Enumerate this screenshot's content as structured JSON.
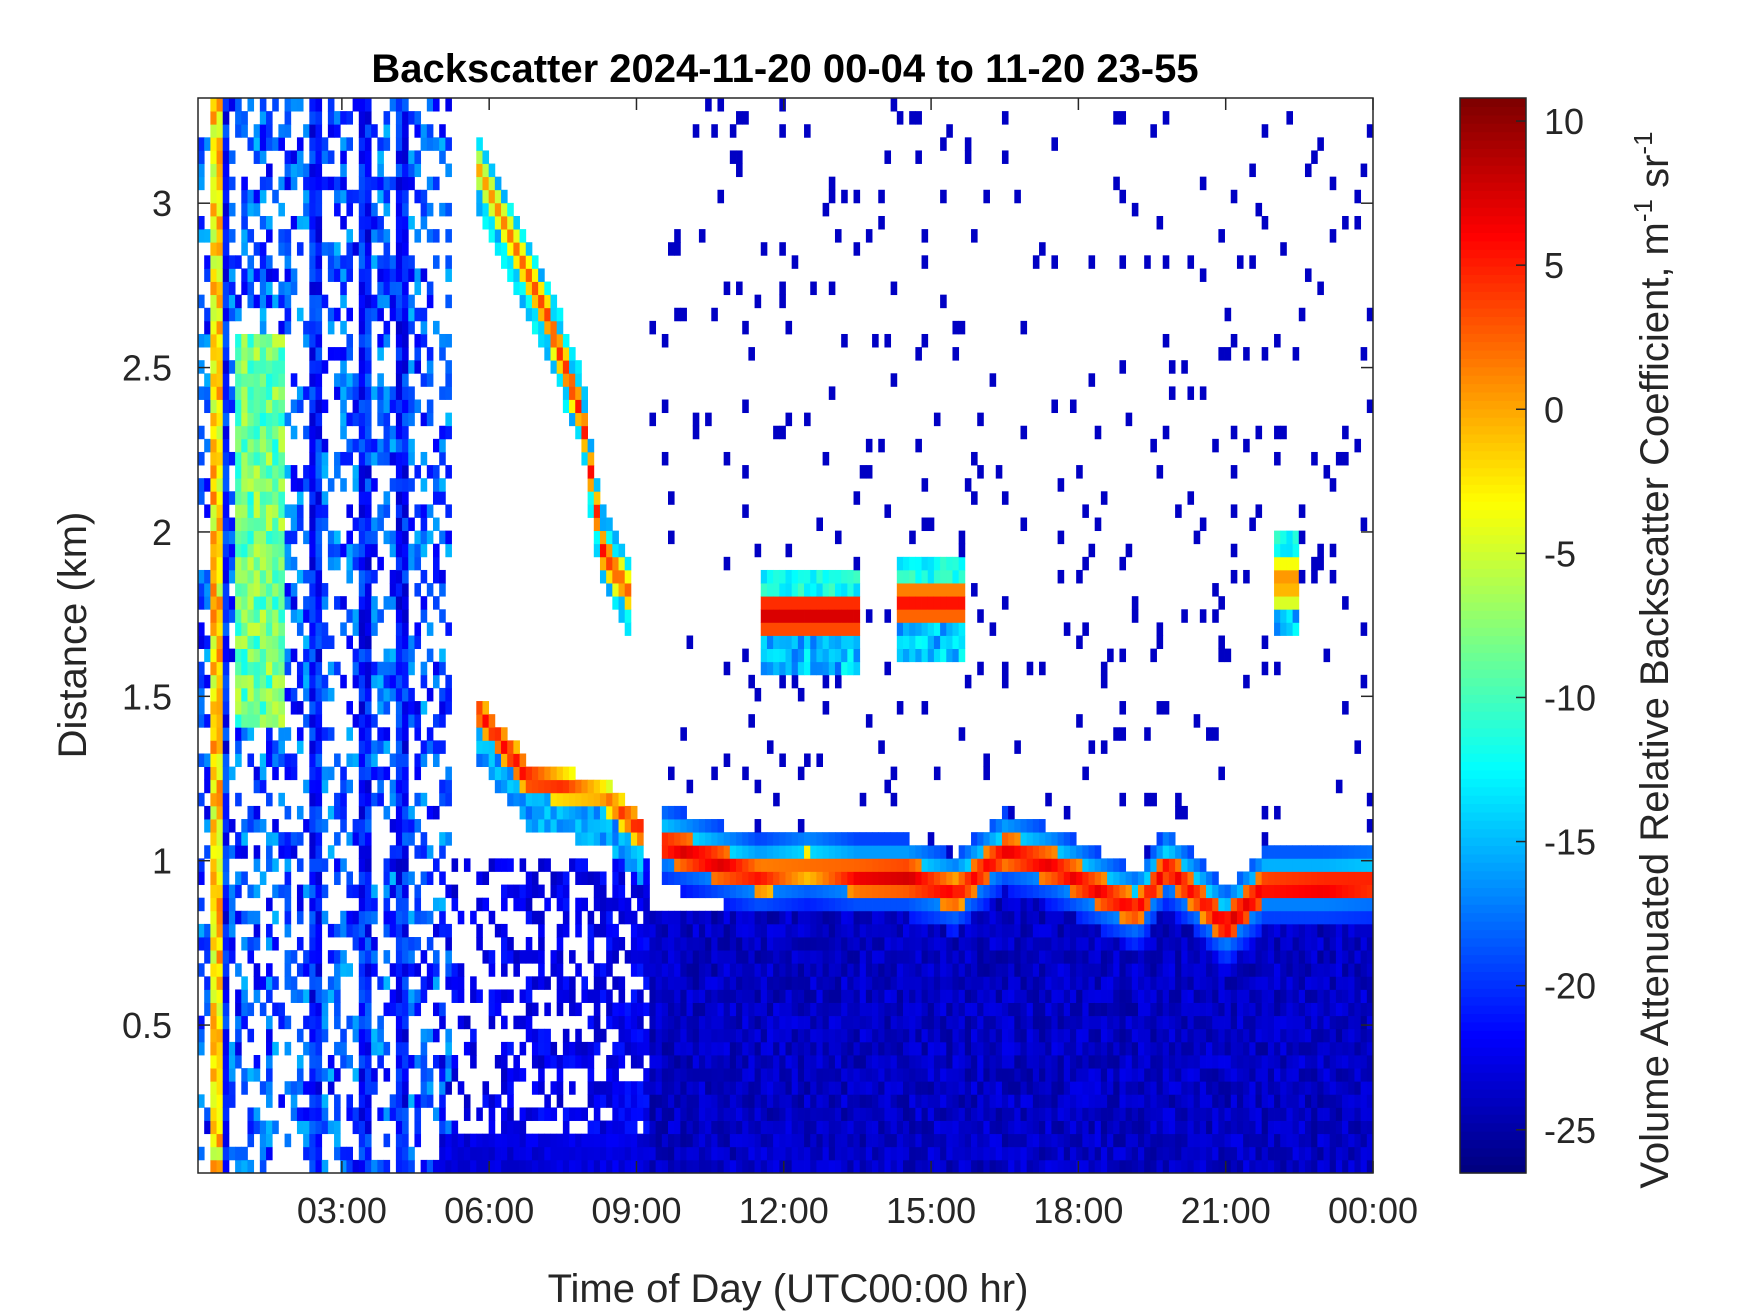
{
  "chart_data": {
    "type": "heatmap",
    "title": "Backscatter 2024-11-20 00-04 to 11-20 23-55",
    "xlabel": "Time of Day (UTC00:00 hr)",
    "ylabel": "Distance (km)",
    "x_range_hours": [
      0.07,
      24.0
    ],
    "y_range_km": [
      0.05,
      3.32
    ],
    "x_ticks": [
      {
        "value": 3,
        "label": "03:00"
      },
      {
        "value": 6,
        "label": "06:00"
      },
      {
        "value": 9,
        "label": "09:00"
      },
      {
        "value": 12,
        "label": "12:00"
      },
      {
        "value": 15,
        "label": "15:00"
      },
      {
        "value": 18,
        "label": "18:00"
      },
      {
        "value": 21,
        "label": "21:00"
      },
      {
        "value": 24,
        "label": "00:00"
      }
    ],
    "y_ticks": [
      {
        "value": 0.5,
        "label": "0.5"
      },
      {
        "value": 1.0,
        "label": "1"
      },
      {
        "value": 1.5,
        "label": "1.5"
      },
      {
        "value": 2.0,
        "label": "2"
      },
      {
        "value": 2.5,
        "label": "2.5"
      },
      {
        "value": 3.0,
        "label": "3"
      }
    ],
    "colorbar": {
      "label": "Volume Attenuated Relative Backscatter Coefficient, m",
      "label_unit_m_exp": "-1",
      "label_unit_sr": " sr",
      "label_unit_sr_exp": "-1",
      "colormap": "jet",
      "range": [
        -26.5,
        10.8
      ],
      "ticks": [
        {
          "value": 10,
          "label": "10"
        },
        {
          "value": 5,
          "label": "5"
        },
        {
          "value": 0,
          "label": "0"
        },
        {
          "value": -5,
          "label": "-5"
        },
        {
          "value": -10,
          "label": "-10"
        },
        {
          "value": -15,
          "label": "-15"
        },
        {
          "value": -20,
          "label": "-20"
        },
        {
          "value": -25,
          "label": "-25"
        }
      ]
    },
    "features": {
      "boundary_layer_fill_value": -24,
      "cloud_layer": [
        {
          "t": 9.5,
          "z": 1.05,
          "v": 7
        },
        {
          "t": 10.5,
          "z": 1.0,
          "v": 8
        },
        {
          "t": 11.5,
          "z": 0.95,
          "v": 6
        },
        {
          "t": 12.5,
          "z": 0.98,
          "v": 3
        },
        {
          "t": 13.5,
          "z": 0.95,
          "v": 7
        },
        {
          "t": 14.5,
          "z": 0.95,
          "v": 8
        },
        {
          "t": 15.5,
          "z": 0.9,
          "v": 6
        },
        {
          "t": 16.5,
          "z": 1.03,
          "v": 7
        },
        {
          "t": 17.5,
          "z": 0.98,
          "v": 7
        },
        {
          "t": 18.5,
          "z": 0.9,
          "v": 7
        },
        {
          "t": 19.2,
          "z": 0.85,
          "v": 6
        },
        {
          "t": 19.8,
          "z": 0.98,
          "v": 7
        },
        {
          "t": 20.5,
          "z": 0.88,
          "v": 6
        },
        {
          "t": 21.0,
          "z": 0.8,
          "v": 8
        },
        {
          "t": 21.8,
          "z": 0.92,
          "v": 7
        },
        {
          "t": 23.0,
          "z": 0.92,
          "v": 8
        },
        {
          "t": 24.0,
          "z": 0.93,
          "v": 7
        }
      ],
      "descending_layer": [
        {
          "t": 5.8,
          "z": 3.1,
          "v": 0
        },
        {
          "t": 7.2,
          "z": 2.65,
          "v": 5
        },
        {
          "t": 7.9,
          "z": 2.35,
          "v": 6
        },
        {
          "t": 8.3,
          "z": 1.95,
          "v": 6
        },
        {
          "t": 8.9,
          "z": 1.8,
          "v": 3
        }
      ],
      "lower_descending_layer": [
        {
          "t": 5.8,
          "z": 1.45,
          "v": 6
        },
        {
          "t": 6.8,
          "z": 1.25,
          "v": 7
        },
        {
          "t": 8.3,
          "z": 1.2,
          "v": 2
        },
        {
          "t": 9.2,
          "z": 1.08,
          "v": 7
        }
      ],
      "cloud_patches": [
        {
          "t0": 11.5,
          "t1": 13.6,
          "z": 1.75,
          "v": 8
        },
        {
          "t0": 14.3,
          "t1": 15.7,
          "z": 1.78,
          "v": 6
        },
        {
          "t0": 22.0,
          "t1": 22.5,
          "z": 1.85,
          "v": 2
        }
      ]
    }
  }
}
